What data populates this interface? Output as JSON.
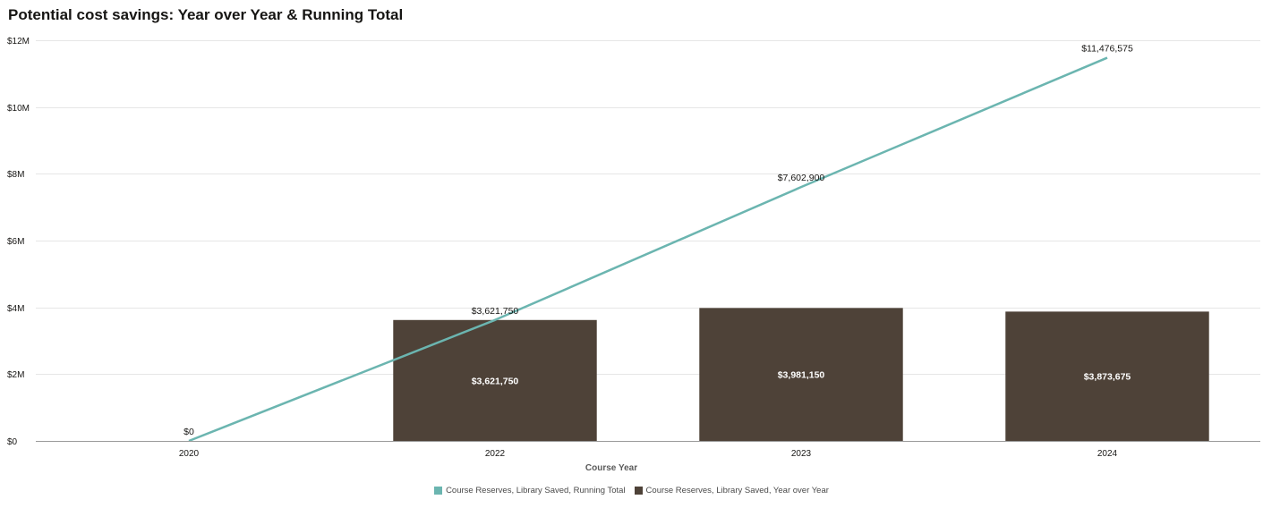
{
  "page": {
    "title": "Potential cost savings: Year over Year & Running Total"
  },
  "chart_data": {
    "type": "bar+line",
    "title": "Potential cost savings: Year over Year & Running Total",
    "xlabel": "Course Year",
    "ylabel": "",
    "categories": [
      "2020",
      "2022",
      "2023",
      "2024"
    ],
    "ylim": [
      0,
      12000000
    ],
    "yticks": [
      0,
      2000000,
      4000000,
      6000000,
      8000000,
      10000000,
      12000000
    ],
    "ytick_labels": [
      "$0",
      "$2M",
      "$4M",
      "$6M",
      "$8M",
      "$10M",
      "$12M"
    ],
    "grid": true,
    "legend_position": "bottom",
    "series": [
      {
        "name": "Course Reserves, Library Saved, Running Total",
        "type": "line",
        "color": "#6bb5b0",
        "values": [
          0,
          3621750,
          7602900,
          11476575
        ],
        "labels": [
          "$0",
          "$3,621,750",
          "$7,602,900",
          "$11,476,575"
        ]
      },
      {
        "name": "Course Reserves, Library Saved, Year over Year",
        "type": "bar",
        "color": "#4e4238",
        "values": [
          null,
          3621750,
          3981150,
          3873675
        ],
        "labels": [
          "",
          "$3,621,750",
          "$3,981,150",
          "$3,873,675"
        ]
      }
    ]
  }
}
